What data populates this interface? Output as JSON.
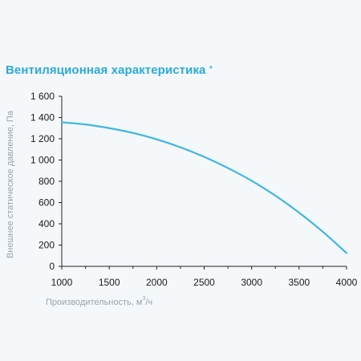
{
  "title": "Вентиляционная характеристика",
  "title_mark": "*",
  "chart_data": {
    "type": "line",
    "ylabel": "Внешнее статическое давление, Па",
    "xlabel_prefix": "Производительность, м",
    "xlabel_sup": "3",
    "xlabel_suffix": "/ч",
    "xlim": [
      1000,
      4000
    ],
    "ylim": [
      0,
      1600
    ],
    "x_ticks": [
      1000,
      1500,
      2000,
      2500,
      3000,
      3500,
      4000
    ],
    "y_ticks": [
      0,
      200,
      400,
      600,
      800,
      1000,
      1200,
      1400,
      1600
    ],
    "y_tick_labels": [
      "0",
      "200",
      "400",
      "600",
      "800",
      "1 000",
      "1 200",
      "1 400",
      "1 600"
    ],
    "grid": false,
    "line_color": "#3fb5e4",
    "series": [
      {
        "x": [
          1000,
          1250,
          1500,
          1750,
          2000,
          2250,
          2500,
          2750,
          3000,
          3250,
          3500,
          3750,
          4000
        ],
        "y": [
          1355,
          1335,
          1300,
          1255,
          1195,
          1120,
          1030,
          925,
          805,
          665,
          505,
          325,
          125
        ]
      }
    ]
  }
}
